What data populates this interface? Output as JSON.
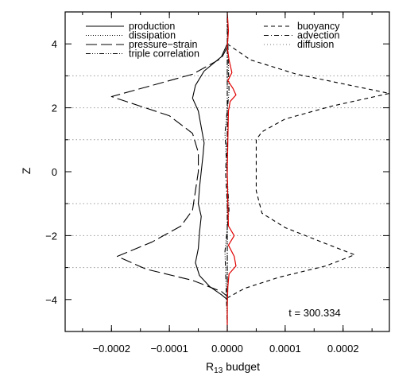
{
  "chart_data": {
    "type": "line",
    "title": "",
    "xlabel_main": "R",
    "xlabel_sub": "13",
    "xlabel_rest": " budget",
    "ylabel": "Z",
    "xlim": [
      -0.00028,
      0.00028
    ],
    "ylim": [
      -5,
      5
    ],
    "x_ticks": [
      -0.0002,
      -0.0001,
      0.0,
      0.0001,
      0.0002
    ],
    "x_tick_labels": [
      "−0.0002",
      "−0.0001",
      "0.0000",
      "0.0001",
      "0.0002"
    ],
    "y_ticks": [
      -4,
      -2,
      0,
      2,
      4
    ],
    "y_tick_labels": [
      "−4",
      "−2",
      "0",
      "2",
      "4"
    ],
    "horizontal_gridlines_y": [
      3,
      2,
      1,
      -1,
      -2,
      -3
    ],
    "annotation": "t = 300.334",
    "legend_left": [
      {
        "label": "production",
        "style": "solid"
      },
      {
        "label": "dissipation",
        "style": "dotted"
      },
      {
        "label": "pressure−strain",
        "style": "longdash"
      },
      {
        "label": "triple correlation",
        "style": "dashdotdotdot"
      }
    ],
    "legend_right": [
      {
        "label": "buoyancy",
        "style": "dashed"
      },
      {
        "label": "advection",
        "style": "dashdot"
      },
      {
        "label": "diffusion",
        "style": "dotted-gray"
      }
    ],
    "series": [
      {
        "name": "production",
        "style": "solid",
        "color": "#000000",
        "points": [
          [
            0.0,
            4.0
          ],
          [
            -1e-05,
            3.6
          ],
          [
            -4e-05,
            3.15
          ],
          [
            -5.5e-05,
            2.7
          ],
          [
            -6e-05,
            2.3
          ],
          [
            -5e-05,
            1.9
          ],
          [
            -4.5e-05,
            1.4
          ],
          [
            -4e-05,
            0.9
          ],
          [
            -4.2e-05,
            0.5
          ],
          [
            -4.5e-05,
            0.0
          ],
          [
            -4.8e-05,
            -0.5
          ],
          [
            -5e-05,
            -1.0
          ],
          [
            -4.5e-05,
            -1.4
          ],
          [
            -4.8e-05,
            -1.9
          ],
          [
            -5e-05,
            -2.4
          ],
          [
            -5.5e-05,
            -2.85
          ],
          [
            -4.8e-05,
            -3.25
          ],
          [
            -3e-05,
            -3.6
          ],
          [
            -1e-05,
            -3.85
          ],
          [
            0.0,
            -4.0
          ]
        ]
      },
      {
        "name": "pressure−strain",
        "style": "longdash",
        "color": "#000000",
        "points": [
          [
            0.0,
            3.9
          ],
          [
            -1e-05,
            3.55
          ],
          [
            -6e-05,
            3.05
          ],
          [
            -0.00014,
            2.65
          ],
          [
            -0.0002,
            2.35
          ],
          [
            -0.00015,
            2.05
          ],
          [
            -0.0001,
            1.75
          ],
          [
            -6e-05,
            1.2
          ],
          [
            -5e-05,
            0.6
          ],
          [
            -5e-05,
            0.0
          ],
          [
            -5.5e-05,
            -0.6
          ],
          [
            -6e-05,
            -1.2
          ],
          [
            -8e-05,
            -1.7
          ],
          [
            -0.00013,
            -2.2
          ],
          [
            -0.00019,
            -2.65
          ],
          [
            -0.00014,
            -3.05
          ],
          [
            -6e-05,
            -3.4
          ],
          [
            -1e-05,
            -3.75
          ],
          [
            0.0,
            -3.9
          ]
        ]
      },
      {
        "name": "buoyancy",
        "style": "dashed",
        "color": "#000000",
        "points": [
          [
            0.0,
            4.0
          ],
          [
            4e-05,
            3.5
          ],
          [
            0.00012,
            3.05
          ],
          [
            0.0002,
            2.75
          ],
          [
            0.00028,
            2.45
          ],
          [
            0.00018,
            2.05
          ],
          [
            0.0001,
            1.65
          ],
          [
            6e-05,
            1.25
          ],
          [
            5e-05,
            1.0
          ],
          [
            5e-05,
            0.0
          ],
          [
            5e-05,
            -0.6
          ],
          [
            6e-05,
            -1.3
          ],
          [
            0.0001,
            -1.75
          ],
          [
            0.00017,
            -2.25
          ],
          [
            0.00022,
            -2.6
          ],
          [
            0.00017,
            -2.95
          ],
          [
            9e-05,
            -3.3
          ],
          [
            3e-05,
            -3.65
          ],
          [
            0.0,
            -3.95
          ]
        ]
      },
      {
        "name": "advection",
        "style": "dashdot",
        "color": "#000000",
        "points": [
          [
            0.0,
            4.8
          ],
          [
            0.0,
            1.0
          ],
          [
            -3e-06,
            0.0
          ],
          [
            0.0,
            -1.0
          ],
          [
            0.0,
            -4.8
          ]
        ]
      },
      {
        "name": "triple correlation",
        "style": "dashdotdotdot",
        "color": "#000000",
        "points": [
          [
            0.0,
            4.8
          ],
          [
            3e-06,
            2.5
          ],
          [
            -4e-06,
            1.2
          ],
          [
            3e-06,
            -1.2
          ],
          [
            -4e-06,
            -2.5
          ],
          [
            0.0,
            -4.8
          ]
        ]
      },
      {
        "name": "dissipation",
        "style": "dotted",
        "color": "#000000",
        "points": [
          [
            0.0,
            5.0
          ],
          [
            0.0,
            -5.0
          ]
        ]
      },
      {
        "name": "diffusion",
        "style": "dotted-gray",
        "color": "#777777",
        "points": [
          [
            0.0,
            5.0
          ],
          [
            0.0,
            -5.0
          ]
        ]
      },
      {
        "name": "",
        "style": "solid-red",
        "color": "#e00000",
        "points": [
          [
            0.0,
            5.0
          ],
          [
            2e-06,
            4.4
          ],
          [
            0.0,
            3.9
          ],
          [
            3e-06,
            3.5
          ],
          [
            8e-06,
            3.1
          ],
          [
            1e-06,
            2.85
          ],
          [
            1e-05,
            2.6
          ],
          [
            1.5e-05,
            2.4
          ],
          [
            5e-06,
            2.2
          ],
          [
            2e-06,
            1.9
          ],
          [
            1e-06,
            1.0
          ],
          [
            0.0,
            0.0
          ],
          [
            1e-06,
            -1.0
          ],
          [
            2e-06,
            -1.7
          ],
          [
            1.2e-05,
            -2.0
          ],
          [
            2e-06,
            -2.3
          ],
          [
            1.2e-05,
            -2.65
          ],
          [
            1.5e-05,
            -2.95
          ],
          [
            3e-06,
            -3.2
          ],
          [
            1e-06,
            -3.6
          ],
          [
            0.0,
            -4.2
          ],
          [
            0.0,
            -5.0
          ]
        ]
      }
    ]
  }
}
